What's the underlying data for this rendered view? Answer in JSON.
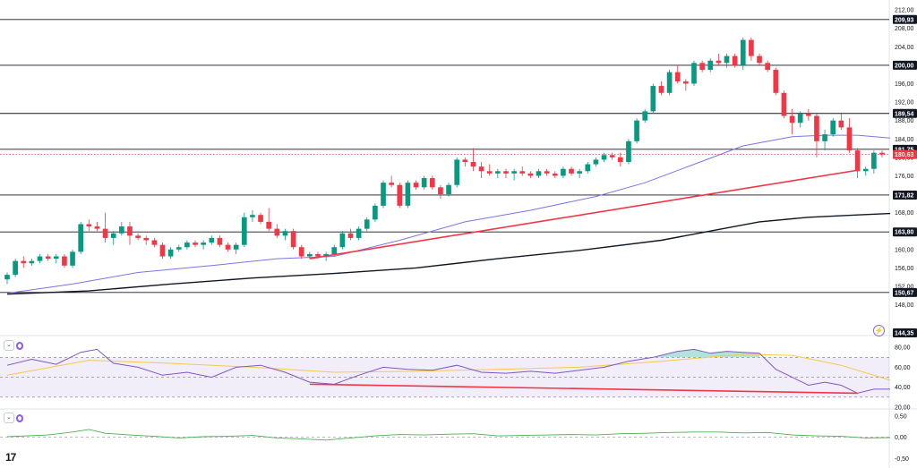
{
  "ui": {
    "logo_text": "17",
    "flash_icon": "⚡",
    "chevron_icon": "⌄"
  },
  "chart_data": {
    "type": "candlestick",
    "price_axis": {
      "ylim": [
        145,
        213
      ],
      "ticks": [
        212,
        208,
        204,
        200,
        196,
        192,
        188,
        184,
        180,
        176,
        172,
        168,
        164,
        160,
        156,
        152,
        148
      ],
      "tick_labels": [
        "212,00",
        "208,00",
        "204,00",
        "200,00",
        "196,00",
        "192,00",
        "188,00",
        "184,00",
        "180,00",
        "176,00",
        "172,00",
        "168,00",
        "164,00",
        "160,00",
        "156,00",
        "152,00",
        "148,00"
      ]
    },
    "levels": [
      {
        "value": 209.93,
        "label": "209,93"
      },
      {
        "value": 200.0,
        "label": "200,00"
      },
      {
        "value": 189.54,
        "label": "189,54"
      },
      {
        "value": 181.75,
        "label": "181,75"
      },
      {
        "value": 171.82,
        "label": "171,82"
      },
      {
        "value": 163.8,
        "label": "163,80"
      },
      {
        "value": 150.67,
        "label": "150,67"
      },
      {
        "value": 144.35,
        "label": "144,35"
      }
    ],
    "current_price": {
      "value": 180.63,
      "label": "180,63"
    },
    "candles": [
      [
        153.5,
        155.0,
        152.5,
        154.5
      ],
      [
        154.5,
        158.0,
        154.0,
        157.5
      ],
      [
        157.5,
        158.5,
        156.0,
        157.0
      ],
      [
        157.0,
        158.0,
        156.5,
        157.5
      ],
      [
        157.5,
        159.0,
        157.0,
        158.5
      ],
      [
        158.5,
        159.0,
        157.5,
        158.0
      ],
      [
        158.0,
        159.0,
        157.0,
        158.5
      ],
      [
        158.5,
        159.0,
        156.0,
        156.5
      ],
      [
        156.5,
        160.0,
        156.0,
        159.5
      ],
      [
        159.5,
        166.0,
        159.0,
        165.5
      ],
      [
        165.5,
        166.5,
        164.0,
        165.0
      ],
      [
        165.0,
        166.0,
        164.0,
        164.5
      ],
      [
        164.5,
        168.0,
        161.5,
        162.5
      ],
      [
        162.5,
        164.0,
        161.0,
        163.5
      ],
      [
        163.5,
        166.0,
        163.0,
        165.0
      ],
      [
        165.0,
        166.0,
        161.0,
        163.0
      ],
      [
        163.0,
        163.5,
        162.0,
        162.5
      ],
      [
        162.5,
        163.0,
        161.0,
        162.0
      ],
      [
        162.0,
        162.5,
        160.5,
        161.0
      ],
      [
        161.0,
        161.5,
        158.0,
        158.5
      ],
      [
        158.5,
        160.5,
        158.0,
        160.0
      ],
      [
        160.0,
        161.0,
        159.5,
        160.5
      ],
      [
        160.5,
        162.0,
        160.0,
        161.5
      ],
      [
        161.5,
        162.0,
        160.5,
        161.0
      ],
      [
        161.0,
        162.0,
        160.0,
        161.5
      ],
      [
        161.5,
        163.0,
        161.0,
        162.5
      ],
      [
        162.5,
        163.0,
        160.5,
        161.0
      ],
      [
        161.0,
        161.5,
        159.5,
        160.0
      ],
      [
        160.0,
        161.5,
        159.0,
        161.0
      ],
      [
        161.0,
        168.0,
        160.5,
        167.0
      ],
      [
        167.0,
        168.5,
        166.0,
        167.5
      ],
      [
        167.5,
        168.0,
        165.5,
        166.0
      ],
      [
        166.0,
        169.0,
        164.0,
        164.5
      ],
      [
        164.5,
        165.5,
        162.5,
        163.0
      ],
      [
        163.0,
        164.5,
        162.0,
        164.0
      ],
      [
        164.0,
        164.5,
        160.0,
        160.5
      ],
      [
        160.5,
        161.0,
        158.0,
        158.5
      ],
      [
        158.5,
        159.5,
        158.0,
        159.0
      ],
      [
        159.0,
        159.5,
        158.0,
        158.5
      ],
      [
        158.5,
        159.5,
        157.5,
        159.0
      ],
      [
        159.0,
        161.0,
        158.5,
        160.5
      ],
      [
        160.5,
        164.0,
        160.0,
        163.5
      ],
      [
        163.5,
        164.5,
        162.0,
        162.5
      ],
      [
        162.5,
        165.0,
        162.0,
        164.5
      ],
      [
        164.5,
        167.0,
        164.0,
        166.5
      ],
      [
        166.5,
        170.0,
        166.0,
        169.5
      ],
      [
        169.5,
        175.0,
        169.0,
        174.5
      ],
      [
        174.5,
        176.0,
        173.5,
        174.0
      ],
      [
        174.0,
        174.5,
        169.0,
        169.5
      ],
      [
        169.5,
        175.0,
        169.0,
        174.5
      ],
      [
        174.5,
        175.0,
        173.0,
        173.5
      ],
      [
        173.5,
        176.0,
        173.0,
        175.5
      ],
      [
        175.5,
        176.0,
        173.0,
        173.5
      ],
      [
        173.5,
        174.0,
        171.0,
        172.0
      ],
      [
        172.0,
        174.5,
        171.5,
        174.0
      ],
      [
        174.0,
        180.0,
        173.5,
        179.5
      ],
      [
        179.5,
        180.0,
        178.0,
        179.0
      ],
      [
        179.0,
        182.0,
        177.0,
        178.0
      ],
      [
        178.0,
        179.0,
        175.5,
        177.0
      ],
      [
        177.0,
        178.5,
        176.0,
        176.5
      ],
      [
        176.5,
        177.5,
        175.5,
        177.0
      ],
      [
        177.0,
        177.5,
        175.5,
        176.5
      ],
      [
        176.5,
        177.5,
        175.0,
        177.0
      ],
      [
        177.0,
        178.0,
        176.0,
        176.5
      ],
      [
        176.5,
        177.0,
        175.5,
        176.0
      ],
      [
        176.0,
        177.5,
        175.5,
        177.0
      ],
      [
        177.0,
        177.5,
        176.0,
        176.5
      ],
      [
        176.5,
        177.0,
        175.5,
        176.0
      ],
      [
        176.0,
        178.0,
        175.5,
        177.5
      ],
      [
        177.5,
        178.0,
        176.0,
        176.5
      ],
      [
        176.5,
        177.5,
        175.5,
        177.0
      ],
      [
        177.0,
        179.0,
        176.5,
        178.5
      ],
      [
        178.5,
        180.0,
        178.0,
        179.5
      ],
      [
        179.5,
        181.0,
        179.0,
        180.5
      ],
      [
        180.5,
        181.0,
        179.5,
        180.0
      ],
      [
        180.0,
        181.0,
        178.0,
        179.0
      ],
      [
        179.0,
        184.0,
        178.5,
        183.5
      ],
      [
        183.5,
        188.5,
        183.0,
        188.0
      ],
      [
        188.0,
        190.5,
        187.5,
        190.0
      ],
      [
        190.0,
        196.0,
        189.5,
        195.5
      ],
      [
        195.5,
        196.5,
        193.5,
        194.0
      ],
      [
        194.0,
        199.0,
        193.5,
        198.5
      ],
      [
        198.5,
        200.0,
        196.0,
        196.5
      ],
      [
        196.5,
        197.0,
        194.5,
        196.0
      ],
      [
        196.0,
        201.0,
        195.5,
        200.5
      ],
      [
        200.5,
        201.0,
        198.5,
        199.0
      ],
      [
        199.0,
        201.5,
        198.5,
        201.0
      ],
      [
        201.0,
        202.5,
        200.0,
        200.5
      ],
      [
        200.5,
        202.5,
        199.5,
        202.0
      ],
      [
        202.0,
        202.5,
        199.5,
        200.0
      ],
      [
        200.0,
        206.0,
        199.0,
        205.5
      ],
      [
        205.5,
        206.0,
        201.0,
        202.0
      ],
      [
        202.0,
        202.5,
        200.0,
        200.5
      ],
      [
        200.5,
        201.0,
        198.5,
        199.0
      ],
      [
        199.0,
        199.5,
        193.5,
        194.0
      ],
      [
        194.0,
        194.5,
        188.5,
        189.0
      ],
      [
        189.0,
        190.5,
        185.0,
        187.5
      ],
      [
        187.5,
        190.0,
        186.5,
        189.5
      ],
      [
        189.5,
        190.5,
        188.0,
        189.0
      ],
      [
        189.0,
        189.5,
        180.0,
        183.5
      ],
      [
        183.5,
        186.0,
        181.5,
        185.0
      ],
      [
        185.0,
        188.5,
        184.5,
        188.0
      ],
      [
        188.0,
        189.5,
        186.0,
        186.5
      ],
      [
        186.5,
        188.5,
        181.0,
        181.5
      ],
      [
        181.5,
        182.0,
        175.5,
        177.0
      ],
      [
        177.0,
        178.0,
        176.0,
        177.5
      ],
      [
        177.5,
        181.5,
        176.5,
        181.0
      ],
      [
        181.0,
        181.5,
        180.0,
        180.63
      ]
    ],
    "ma_short": [
      [
        0,
        150.5
      ],
      [
        8,
        152.5
      ],
      [
        16,
        155.0
      ],
      [
        25,
        156.5
      ],
      [
        33,
        158.0
      ],
      [
        40,
        158.5
      ],
      [
        48,
        162.0
      ],
      [
        56,
        166.0
      ],
      [
        64,
        168.5
      ],
      [
        72,
        171.5
      ],
      [
        78,
        174.5
      ],
      [
        84,
        178.5
      ],
      [
        90,
        182.5
      ],
      [
        96,
        184.5
      ],
      [
        100,
        184.8
      ],
      [
        104,
        184.8
      ],
      [
        108,
        184.2
      ]
    ],
    "ma_long": [
      [
        0,
        150.3
      ],
      [
        10,
        151.0
      ],
      [
        20,
        152.5
      ],
      [
        30,
        153.8
      ],
      [
        40,
        154.8
      ],
      [
        50,
        156.0
      ],
      [
        60,
        158.0
      ],
      [
        70,
        159.8
      ],
      [
        80,
        162.0
      ],
      [
        86,
        164.0
      ],
      [
        92,
        166.0
      ],
      [
        98,
        167.0
      ],
      [
        104,
        167.5
      ],
      [
        108,
        167.8
      ]
    ],
    "trendline_price": {
      "from": [
        37,
        158.0
      ],
      "to": [
        104,
        177.2
      ]
    },
    "rsi": {
      "ylim": [
        20,
        90
      ],
      "ticks": [
        80,
        60,
        40,
        20
      ],
      "tick_labels": [
        "80,00",
        "60,00",
        "40,00",
        "20,00"
      ],
      "band": [
        30,
        70
      ],
      "values": [
        [
          0,
          62
        ],
        [
          3,
          68
        ],
        [
          6,
          63
        ],
        [
          9,
          75
        ],
        [
          11,
          78
        ],
        [
          13,
          64
        ],
        [
          16,
          60
        ],
        [
          19,
          52
        ],
        [
          22,
          55
        ],
        [
          25,
          50
        ],
        [
          28,
          60
        ],
        [
          31,
          62
        ],
        [
          34,
          55
        ],
        [
          37,
          45
        ],
        [
          40,
          43
        ],
        [
          43,
          52
        ],
        [
          46,
          60
        ],
        [
          49,
          58
        ],
        [
          52,
          57
        ],
        [
          55,
          62
        ],
        [
          58,
          55
        ],
        [
          61,
          54
        ],
        [
          64,
          56
        ],
        [
          67,
          54
        ],
        [
          70,
          57
        ],
        [
          73,
          60
        ],
        [
          76,
          66
        ],
        [
          79,
          70
        ],
        [
          82,
          76
        ],
        [
          84,
          78
        ],
        [
          86,
          74
        ],
        [
          88,
          76
        ],
        [
          90,
          75
        ],
        [
          92,
          74
        ],
        [
          94,
          58
        ],
        [
          96,
          50
        ],
        [
          98,
          42
        ],
        [
          100,
          45
        ],
        [
          102,
          42
        ],
        [
          104,
          34
        ],
        [
          106,
          38
        ],
        [
          108,
          38
        ]
      ],
      "signal": [
        [
          0,
          52
        ],
        [
          10,
          67
        ],
        [
          20,
          64
        ],
        [
          30,
          60
        ],
        [
          40,
          55
        ],
        [
          50,
          56
        ],
        [
          60,
          58
        ],
        [
          70,
          60
        ],
        [
          80,
          66
        ],
        [
          90,
          73
        ],
        [
          96,
          72
        ],
        [
          102,
          62
        ],
        [
          108,
          47
        ]
      ],
      "trendline": {
        "from": [
          37,
          43
        ],
        "to": [
          104,
          34
        ]
      },
      "marker_label": "144,35"
    },
    "macd": {
      "ylim": [
        -0.6,
        0.6
      ],
      "ticks": [
        0.5,
        0.0,
        -0.5
      ],
      "tick_labels": [
        "0,50",
        "0,00",
        "-0,50"
      ],
      "values": [
        [
          0,
          0.01
        ],
        [
          5,
          0.05
        ],
        [
          8,
          0.12
        ],
        [
          10,
          0.18
        ],
        [
          12,
          0.09
        ],
        [
          15,
          0.05
        ],
        [
          18,
          0.02
        ],
        [
          21,
          -0.02
        ],
        [
          24,
          0.01
        ],
        [
          27,
          0.02
        ],
        [
          30,
          0.04
        ],
        [
          33,
          -0.02
        ],
        [
          36,
          -0.04
        ],
        [
          39,
          -0.07
        ],
        [
          42,
          -0.02
        ],
        [
          45,
          0.03
        ],
        [
          48,
          0.06
        ],
        [
          51,
          0.05
        ],
        [
          54,
          0.07
        ],
        [
          57,
          0.08
        ],
        [
          60,
          0.03
        ],
        [
          63,
          0.04
        ],
        [
          66,
          0.05
        ],
        [
          69,
          0.06
        ],
        [
          72,
          0.05
        ],
        [
          75,
          0.08
        ],
        [
          78,
          0.09
        ],
        [
          81,
          0.11
        ],
        [
          84,
          0.12
        ],
        [
          87,
          0.12
        ],
        [
          90,
          0.1
        ],
        [
          93,
          0.11
        ],
        [
          96,
          0.05
        ],
        [
          99,
          0.03
        ],
        [
          102,
          0.02
        ],
        [
          105,
          -0.02
        ],
        [
          108,
          -0.01
        ]
      ]
    }
  }
}
